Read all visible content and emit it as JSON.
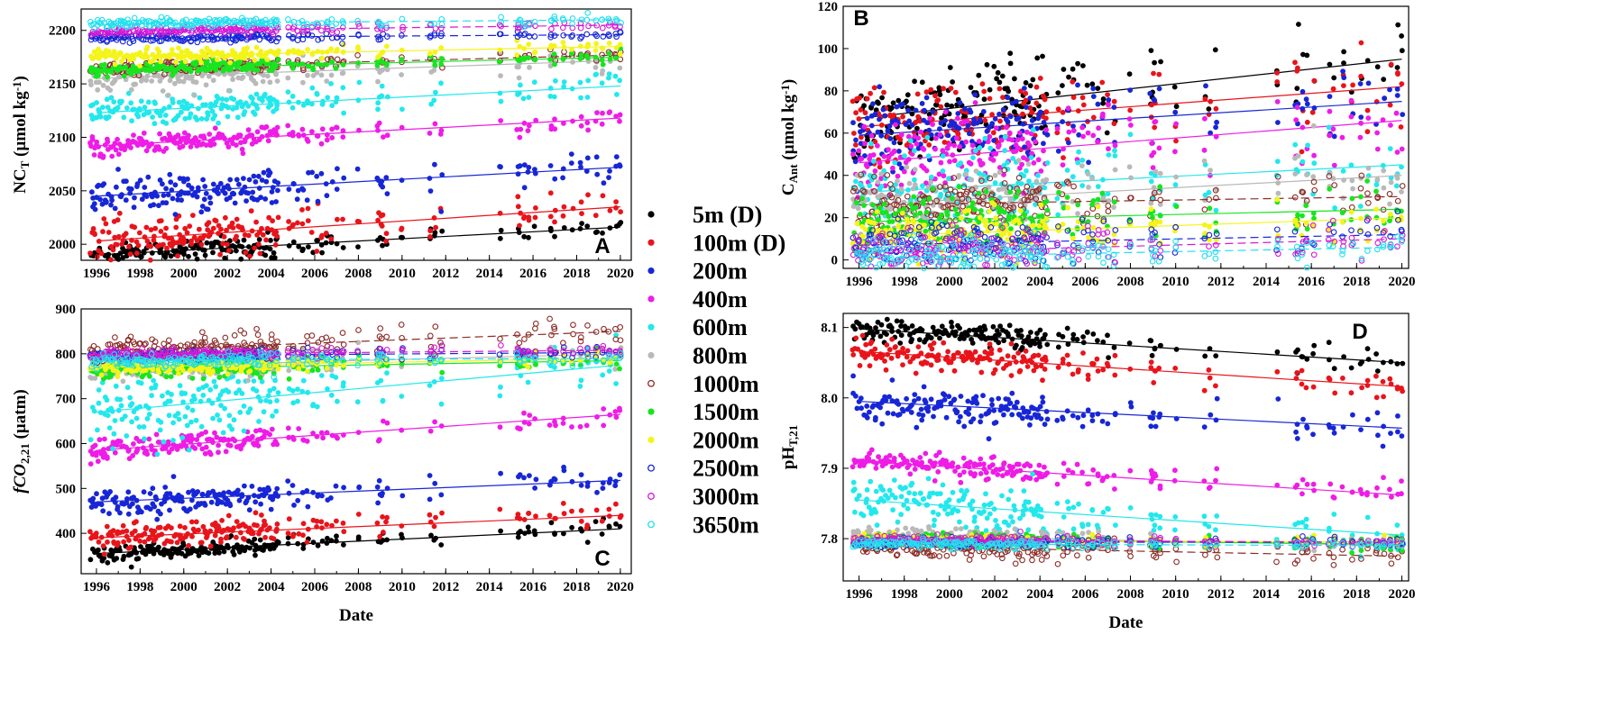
{
  "figure": {
    "legend": [
      {
        "label": "5m (D)",
        "color": "#000000",
        "marker": "filled"
      },
      {
        "label": "100m (D)",
        "color": "#e8141b",
        "marker": "filled"
      },
      {
        "label": "200m",
        "color": "#1726d6",
        "marker": "filled"
      },
      {
        "label": "400m",
        "color": "#ee1ce6",
        "marker": "filled"
      },
      {
        "label": "600m",
        "color": "#22e8ec",
        "marker": "filled"
      },
      {
        "label": "800m",
        "color": "#b9b9b9",
        "marker": "filled"
      },
      {
        "label": "1000m",
        "color": "#8b2c27",
        "marker": "open"
      },
      {
        "label": "1500m",
        "color": "#18e51e",
        "marker": "filled"
      },
      {
        "label": "2000m",
        "color": "#f4f41a",
        "marker": "filled"
      },
      {
        "label": "2500m",
        "color": "#1726d6",
        "marker": "open"
      },
      {
        "label": "3000m",
        "color": "#d61ad6",
        "marker": "open"
      },
      {
        "label": "3650m",
        "color": "#22e0ee",
        "marker": "open"
      }
    ]
  },
  "chart_data": [
    {
      "panel": "A",
      "type": "scatter",
      "ylabel_main": "NC",
      "ylabel_sub": "T",
      "ylabel_unit": " (µmol kg",
      "ylabel_exp": "-1",
      "ylabel_close": ")",
      "xlabel": "",
      "xlim": [
        1995.3,
        2020.5
      ],
      "ylim": [
        1985,
        2220
      ],
      "xticks": [
        "1996",
        "1998",
        "2000",
        "2002",
        "2004",
        "2006",
        "2008",
        "2010",
        "2012",
        "2014",
        "2016",
        "2018",
        "2020"
      ],
      "yticks": [
        "2000",
        "2050",
        "2100",
        "2150",
        "2200"
      ],
      "series": [
        {
          "name": "5m (D)",
          "start": 1990,
          "end": 2016,
          "noise": 5
        },
        {
          "name": "100m (D)",
          "start": 2003,
          "end": 2035,
          "noise": 9
        },
        {
          "name": "200m",
          "start": 2045,
          "end": 2072,
          "noise": 8
        },
        {
          "name": "400m",
          "start": 2092,
          "end": 2118,
          "noise": 5
        },
        {
          "name": "600m",
          "start": 2123,
          "end": 2148,
          "noise": 7
        },
        {
          "name": "800m",
          "start": 2155,
          "end": 2172,
          "noise": 6
        },
        {
          "name": "1000m",
          "start": 2164,
          "end": 2177,
          "noise": 3
        },
        {
          "name": "1500m",
          "start": 2163,
          "end": 2175,
          "noise": 3
        },
        {
          "name": "2000m",
          "start": 2175,
          "end": 2185,
          "noise": 3
        },
        {
          "name": "2500m",
          "start": 2193,
          "end": 2196,
          "noise": 2
        },
        {
          "name": "3000m",
          "start": 2199,
          "end": 2205,
          "noise": 2
        },
        {
          "name": "3650m",
          "start": 2206,
          "end": 2210,
          "noise": 2
        }
      ]
    },
    {
      "panel": "B",
      "type": "scatter",
      "ylabel_main": "C",
      "ylabel_sub": "Ant",
      "ylabel_unit": " (µmol kg",
      "ylabel_exp": "-1",
      "ylabel_close": ")",
      "xlabel": "",
      "xlim": [
        1995.3,
        2020.3
      ],
      "ylim": [
        -4,
        120
      ],
      "xticks": [
        "1996",
        "1998",
        "2000",
        "2002",
        "2004",
        "2006",
        "2008",
        "2010",
        "2012",
        "2014",
        "2016",
        "2018",
        "2020"
      ],
      "yticks": [
        "0",
        "20",
        "40",
        "60",
        "80",
        "100",
        "120"
      ],
      "series": [
        {
          "name": "5m (D)",
          "start": 67,
          "end": 95,
          "noise": 10
        },
        {
          "name": "100m (D)",
          "start": 63,
          "end": 82,
          "noise": 9
        },
        {
          "name": "200m",
          "start": 59,
          "end": 75,
          "noise": 9
        },
        {
          "name": "400m",
          "start": 46,
          "end": 66,
          "noise": 9
        },
        {
          "name": "600m",
          "start": 32,
          "end": 45,
          "noise": 10
        },
        {
          "name": "800m",
          "start": 26,
          "end": 40,
          "noise": 6
        },
        {
          "name": "1000m",
          "start": 26,
          "end": 30,
          "noise": 6
        },
        {
          "name": "1500m",
          "start": 18,
          "end": 24,
          "noise": 6
        },
        {
          "name": "2000m",
          "start": 11,
          "end": 20,
          "noise": 6
        },
        {
          "name": "2500m",
          "start": 7,
          "end": 12,
          "noise": 5
        },
        {
          "name": "3000m",
          "start": 3,
          "end": 10,
          "noise": 5
        },
        {
          "name": "3650m",
          "start": 1,
          "end": 6,
          "noise": 4
        }
      ]
    },
    {
      "panel": "C",
      "type": "scatter",
      "ylabel_main": "fCO",
      "ylabel_sub": "2,21",
      "ylabel_unit": " (µatm)",
      "ylabel_exp": "",
      "ylabel_close": "",
      "xlabel": "Date",
      "xlim": [
        1995.3,
        2020.5
      ],
      "ylim": [
        310,
        900
      ],
      "xticks": [
        "1996",
        "1998",
        "2000",
        "2002",
        "2004",
        "2006",
        "2008",
        "2010",
        "2012",
        "2014",
        "2016",
        "2018",
        "2020"
      ],
      "yticks": [
        "400",
        "500",
        "600",
        "700",
        "800",
        "900"
      ],
      "series": [
        {
          "name": "5m (D)",
          "start": 355,
          "end": 410,
          "noise": 10
        },
        {
          "name": "100m (D)",
          "start": 390,
          "end": 440,
          "noise": 14
        },
        {
          "name": "200m",
          "start": 470,
          "end": 518,
          "noise": 15
        },
        {
          "name": "400m",
          "start": 585,
          "end": 665,
          "noise": 12
        },
        {
          "name": "600m",
          "start": 670,
          "end": 775,
          "noise": 35
        },
        {
          "name": "800m",
          "start": 770,
          "end": 800,
          "noise": 15
        },
        {
          "name": "1000m",
          "start": 805,
          "end": 850,
          "noise": 15
        },
        {
          "name": "1500m",
          "start": 765,
          "end": 785,
          "noise": 10
        },
        {
          "name": "2000m",
          "start": 770,
          "end": 790,
          "noise": 8
        },
        {
          "name": "2500m",
          "start": 795,
          "end": 803,
          "noise": 6
        },
        {
          "name": "3000m",
          "start": 798,
          "end": 808,
          "noise": 6
        },
        {
          "name": "3650m",
          "start": 785,
          "end": 790,
          "noise": 8
        }
      ]
    },
    {
      "panel": "D",
      "type": "scatter",
      "ylabel_main": "pH",
      "ylabel_sub": "T,21",
      "ylabel_unit": "",
      "ylabel_exp": "",
      "ylabel_close": "",
      "xlabel": "Date",
      "xlim": [
        1995.3,
        2020.3
      ],
      "ylim": [
        7.74,
        8.12
      ],
      "xticks": [
        "1996",
        "1998",
        "2000",
        "2002",
        "2004",
        "2006",
        "2008",
        "2010",
        "2012",
        "2014",
        "2016",
        "2018",
        "2020"
      ],
      "yticks": [
        "7.8",
        "7.9",
        "8.0",
        "8.1"
      ],
      "series": [
        {
          "name": "5m (D)",
          "start": 8.098,
          "end": 8.05,
          "noise": 0.008
        },
        {
          "name": "100m (D)",
          "start": 8.066,
          "end": 8.016,
          "noise": 0.01
        },
        {
          "name": "200m",
          "start": 7.995,
          "end": 7.957,
          "noise": 0.013
        },
        {
          "name": "400m",
          "start": 7.91,
          "end": 7.862,
          "noise": 0.008
        },
        {
          "name": "600m",
          "start": 7.855,
          "end": 7.805,
          "noise": 0.016
        },
        {
          "name": "800m",
          "start": 7.805,
          "end": 7.79,
          "noise": 0.006
        },
        {
          "name": "1000m",
          "start": 7.79,
          "end": 7.775,
          "noise": 0.007
        },
        {
          "name": "1500m",
          "start": 7.8,
          "end": 7.792,
          "noise": 0.005
        },
        {
          "name": "2000m",
          "start": 7.798,
          "end": 7.795,
          "noise": 0.004
        },
        {
          "name": "2500m",
          "start": 7.795,
          "end": 7.795,
          "noise": 0.003
        },
        {
          "name": "3000m",
          "start": 7.798,
          "end": 7.795,
          "noise": 0.003
        },
        {
          "name": "3650m",
          "start": 7.793,
          "end": 7.79,
          "noise": 0.003
        }
      ]
    }
  ]
}
